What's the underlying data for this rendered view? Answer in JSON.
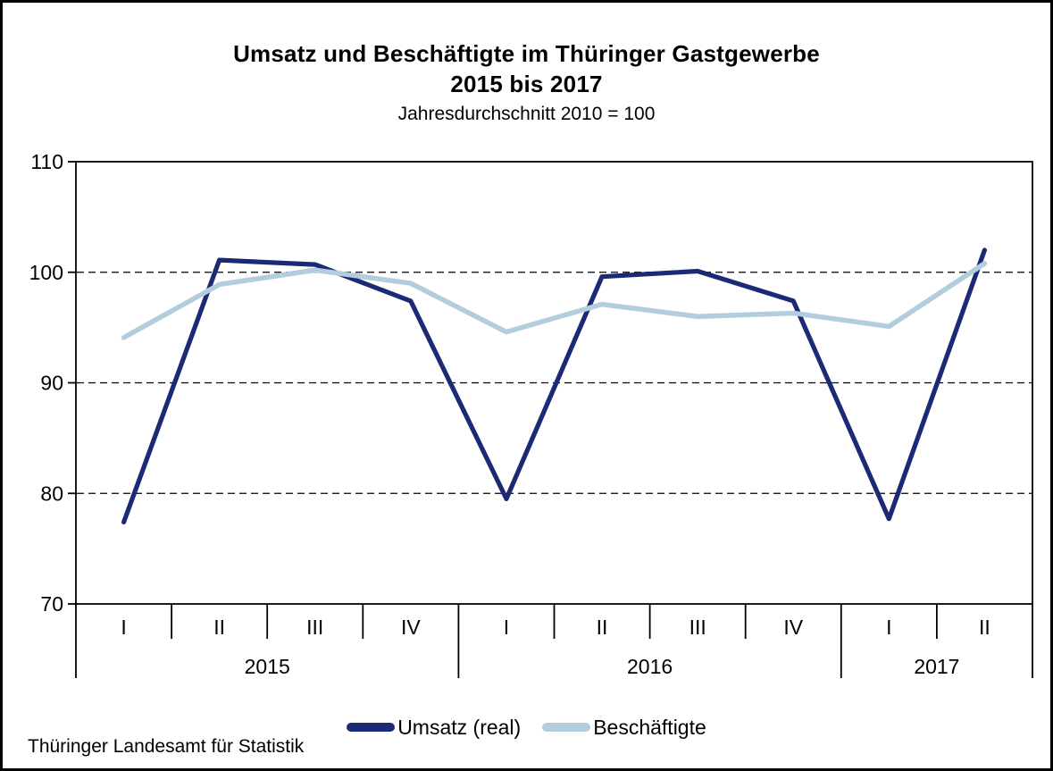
{
  "chart_data": {
    "type": "line",
    "title_line1": "Umsatz und Beschäftigte im Thüringer Gastgewerbe",
    "title_line2": "2015 bis 2017",
    "subtitle": "Jahresdurchschnitt 2010 = 100",
    "x_categories": [
      "I",
      "II",
      "III",
      "IV",
      "I",
      "II",
      "III",
      "IV",
      "I",
      "II"
    ],
    "year_groups": [
      {
        "label": "2015",
        "span": 4
      },
      {
        "label": "2016",
        "span": 4
      },
      {
        "label": "2017",
        "span": 2
      }
    ],
    "ylim": [
      70,
      110
    ],
    "yticks": [
      70,
      80,
      90,
      100,
      110
    ],
    "gridlines_at": [
      80,
      90,
      100
    ],
    "grid_style": "dashed",
    "legend_position": "bottom-center",
    "series": [
      {
        "name": "Umsatz (real)",
        "color": "#1C2A75",
        "values": [
          77.4,
          101.1,
          100.7,
          97.4,
          79.5,
          99.6,
          100.1,
          97.4,
          77.7,
          102.0
        ]
      },
      {
        "name": "Beschäftigte",
        "color": "#B2CDDC",
        "values": [
          94.1,
          98.9,
          100.2,
          99.0,
          94.6,
          97.1,
          96.0,
          96.3,
          95.1,
          100.8
        ]
      }
    ],
    "source": "Thüringer Landesamt für Statistik"
  },
  "colors": {
    "axis": "#000000",
    "background": "#ffffff"
  }
}
